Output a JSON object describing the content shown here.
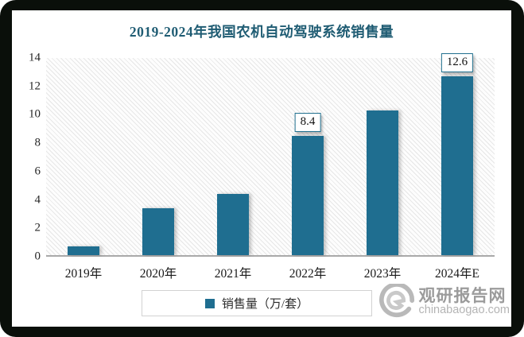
{
  "title": "2019-2024年我国农机自动驾驶系统销售量",
  "colors": {
    "bar": "#1f6e90",
    "title": "#1f5c73",
    "label_box_border": "#21708f",
    "axis_line": "#a9a9a9",
    "watermark_name": "#9b9b9b",
    "watermark_domain": "#b4b4b4"
  },
  "chart_data": {
    "type": "bar",
    "title": "2019-2024年我国农机自动驾驶系统销售量",
    "categories": [
      "2019年",
      "2020年",
      "2021年",
      "2022年",
      "2023年",
      "2024年E"
    ],
    "values": [
      0.6,
      3.3,
      4.3,
      8.4,
      10.2,
      12.6
    ],
    "shown_value_labels": [
      "",
      "",
      "",
      "8.4",
      "",
      "12.6"
    ],
    "xlabel": "",
    "ylabel": "",
    "ylim": [
      0,
      14
    ],
    "yticks": [
      0,
      2,
      4,
      6,
      8,
      10,
      12,
      14
    ],
    "grid": false,
    "plot_background": "diagonal-hatch",
    "legend": [
      "销售量（万/套）"
    ],
    "legend_position": "bottom-center"
  },
  "legend": {
    "label": "销售量（万/套）"
  },
  "watermark": {
    "name": "观研报告网",
    "domain": "chinabaogao.com"
  }
}
